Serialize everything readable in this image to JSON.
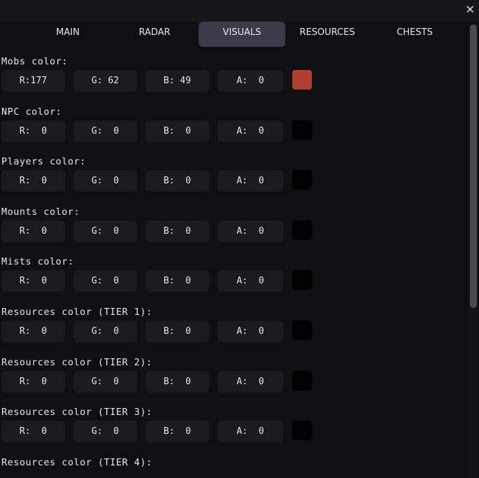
{
  "window": {
    "close_icon": "close-icon"
  },
  "tabs": [
    {
      "label": "MAIN"
    },
    {
      "label": "RADAR"
    },
    {
      "label": "VISUALS",
      "active": true
    },
    {
      "label": "RESOURCES"
    },
    {
      "label": "CHESTS"
    }
  ],
  "sections": [
    {
      "label": "Mobs color:",
      "r": "R:177",
      "g": "G: 62",
      "b": "B: 49",
      "a": "A:  0",
      "color": "#b13e31"
    },
    {
      "label": "NPC color:",
      "r": "R:  0",
      "g": "G:  0",
      "b": "B:  0",
      "a": "A:  0",
      "color": "#000000"
    },
    {
      "label": "Players color:",
      "r": "R:  0",
      "g": "G:  0",
      "b": "B:  0",
      "a": "A:  0",
      "color": "#000000"
    },
    {
      "label": "Mounts color:",
      "r": "R:  0",
      "g": "G:  0",
      "b": "B:  0",
      "a": "A:  0",
      "color": "#000000"
    },
    {
      "label": "Mists color:",
      "r": "R:  0",
      "g": "G:  0",
      "b": "B:  0",
      "a": "A:  0",
      "color": "#000000"
    },
    {
      "label": "Resources color (TIER 1):",
      "r": "R:  0",
      "g": "G:  0",
      "b": "B:  0",
      "a": "A:  0",
      "color": "#000000"
    },
    {
      "label": "Resources color (TIER 2):",
      "r": "R:  0",
      "g": "G:  0",
      "b": "B:  0",
      "a": "A:  0",
      "color": "#000000"
    },
    {
      "label": "Resources color (TIER 3):",
      "r": "R:  0",
      "g": "G:  0",
      "b": "B:  0",
      "a": "A:  0",
      "color": "#000000"
    },
    {
      "label": "Resources color (TIER 4):"
    }
  ]
}
